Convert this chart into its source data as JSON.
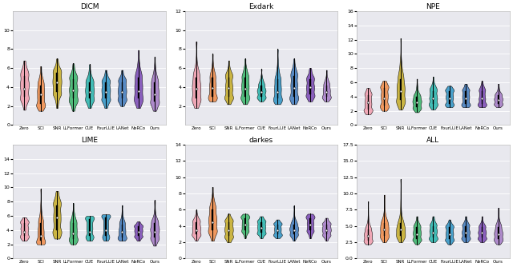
{
  "subplots": [
    {
      "title": "DICM",
      "ylim": [
        0,
        12
      ],
      "yticks": [
        0,
        2,
        4,
        6,
        8,
        10
      ],
      "methods": [
        "Zero",
        "SCI",
        "SNR",
        "LLFormer",
        "CUE",
        "FourLLIE",
        "LANet",
        "NeRCo",
        "Ours"
      ],
      "violins": [
        {
          "median": 3.8,
          "q1": 3.0,
          "q3": 5.2,
          "whislo": 1.6,
          "whishi": 6.8,
          "skew": 0.0
        },
        {
          "median": 3.2,
          "q1": 2.2,
          "q3": 4.2,
          "whislo": 1.5,
          "whishi": 6.2,
          "skew": -0.2
        },
        {
          "median": 4.5,
          "q1": 3.5,
          "q3": 5.5,
          "whislo": 1.8,
          "whishi": 7.0,
          "skew": 0.0
        },
        {
          "median": 3.7,
          "q1": 2.8,
          "q3": 4.8,
          "whislo": 1.5,
          "whishi": 6.5,
          "skew": 0.0
        },
        {
          "median": 3.5,
          "q1": 2.8,
          "q3": 4.5,
          "whislo": 1.8,
          "whishi": 6.4,
          "skew": 0.0
        },
        {
          "median": 3.5,
          "q1": 2.8,
          "q3": 4.5,
          "whislo": 1.8,
          "whishi": 5.8,
          "skew": 0.0
        },
        {
          "median": 3.5,
          "q1": 2.8,
          "q3": 4.5,
          "whislo": 2.0,
          "whishi": 5.8,
          "skew": 0.0
        },
        {
          "median": 3.6,
          "q1": 2.8,
          "q3": 5.0,
          "whislo": 1.8,
          "whishi": 7.9,
          "skew": 0.3
        },
        {
          "median": 3.2,
          "q1": 2.5,
          "q3": 4.5,
          "whislo": 1.5,
          "whishi": 7.2,
          "skew": 0.3
        }
      ]
    },
    {
      "title": "Exdark",
      "ylim": [
        0,
        12
      ],
      "yticks": [
        2,
        4,
        6,
        8,
        10,
        12
      ],
      "methods": [
        "Zero",
        "SCI",
        "SNR",
        "LLFormer",
        "CUE",
        "FourLLIE",
        "LANet",
        "NeRCo",
        "Ours"
      ],
      "violins": [
        {
          "median": 3.8,
          "q1": 2.8,
          "q3": 5.0,
          "whislo": 1.8,
          "whishi": 8.8,
          "skew": 0.3
        },
        {
          "median": 3.9,
          "q1": 3.0,
          "q3": 5.0,
          "whislo": 2.5,
          "whishi": 7.5,
          "skew": 0.2
        },
        {
          "median": 3.9,
          "q1": 3.0,
          "q3": 5.0,
          "whislo": 2.2,
          "whishi": 6.8,
          "skew": 0.1
        },
        {
          "median": 3.8,
          "q1": 3.0,
          "q3": 5.0,
          "whislo": 2.2,
          "whishi": 7.0,
          "skew": 0.1
        },
        {
          "median": 3.5,
          "q1": 3.0,
          "q3": 4.2,
          "whislo": 2.5,
          "whishi": 5.9,
          "skew": 0.0
        },
        {
          "median": 3.5,
          "q1": 2.8,
          "q3": 4.8,
          "whislo": 2.2,
          "whishi": 8.0,
          "skew": 0.3
        },
        {
          "median": 3.9,
          "q1": 3.0,
          "q3": 5.2,
          "whislo": 2.2,
          "whishi": 7.0,
          "skew": 0.1
        },
        {
          "median": 4.0,
          "q1": 3.2,
          "q3": 4.8,
          "whislo": 2.5,
          "whishi": 6.0,
          "skew": 0.0
        },
        {
          "median": 3.5,
          "q1": 3.0,
          "q3": 4.2,
          "whislo": 2.5,
          "whishi": 5.8,
          "skew": 0.0
        }
      ]
    },
    {
      "title": "NPE",
      "ylim": [
        0,
        16
      ],
      "yticks": [
        0,
        2,
        4,
        6,
        8,
        10,
        12,
        14,
        16
      ],
      "methods": [
        "Zero",
        "SCI",
        "SNR",
        "LLFormer",
        "CUE",
        "FourLLIE",
        "LANet",
        "NeRCo",
        "Ours"
      ],
      "violins": [
        {
          "median": 3.2,
          "q1": 2.2,
          "q3": 4.2,
          "whislo": 1.5,
          "whishi": 5.2,
          "skew": 0.0
        },
        {
          "median": 3.8,
          "q1": 2.8,
          "q3": 5.2,
          "whislo": 2.0,
          "whishi": 6.2,
          "skew": 0.0
        },
        {
          "median": 4.8,
          "q1": 3.5,
          "q3": 6.5,
          "whislo": 2.2,
          "whishi": 12.2,
          "skew": 0.5
        },
        {
          "median": 3.2,
          "q1": 2.5,
          "q3": 4.0,
          "whislo": 1.8,
          "whishi": 6.5,
          "skew": 0.2
        },
        {
          "median": 3.8,
          "q1": 3.0,
          "q3": 4.8,
          "whislo": 2.2,
          "whishi": 6.8,
          "skew": 0.2
        },
        {
          "median": 3.8,
          "q1": 3.0,
          "q3": 4.8,
          "whislo": 2.5,
          "whishi": 5.5,
          "skew": 0.0
        },
        {
          "median": 3.8,
          "q1": 3.0,
          "q3": 4.8,
          "whislo": 2.5,
          "whishi": 5.8,
          "skew": 0.0
        },
        {
          "median": 3.8,
          "q1": 3.0,
          "q3": 4.8,
          "whislo": 2.5,
          "whishi": 6.2,
          "skew": 0.1
        },
        {
          "median": 3.5,
          "q1": 3.0,
          "q3": 4.2,
          "whislo": 2.5,
          "whishi": 5.8,
          "skew": 0.0
        }
      ]
    },
    {
      "title": "LIME",
      "ylim": [
        0,
        16
      ],
      "yticks": [
        0,
        2,
        4,
        6,
        8,
        10,
        12,
        14
      ],
      "methods": [
        "Zero",
        "SCI",
        "SNR",
        "LLFormer",
        "CUE",
        "FourLLIE",
        "LANet",
        "NeRCo",
        "Ours"
      ],
      "violins": [
        {
          "median": 3.8,
          "q1": 3.2,
          "q3": 5.0,
          "whislo": 2.5,
          "whishi": 5.8,
          "skew": 0.0
        },
        {
          "median": 3.2,
          "q1": 2.5,
          "q3": 5.0,
          "whislo": 2.0,
          "whishi": 9.8,
          "skew": 0.5
        },
        {
          "median": 5.8,
          "q1": 4.0,
          "q3": 7.5,
          "whislo": 2.8,
          "whishi": 9.5,
          "skew": 0.1
        },
        {
          "median": 3.5,
          "q1": 2.8,
          "q3": 5.0,
          "whislo": 2.0,
          "whishi": 7.8,
          "skew": 0.3
        },
        {
          "median": 3.8,
          "q1": 3.2,
          "q3": 5.5,
          "whislo": 2.5,
          "whishi": 6.0,
          "skew": 0.0
        },
        {
          "median": 4.0,
          "q1": 3.2,
          "q3": 5.8,
          "whislo": 2.5,
          "whishi": 6.2,
          "skew": 0.0
        },
        {
          "median": 3.8,
          "q1": 3.0,
          "q3": 4.8,
          "whislo": 2.5,
          "whishi": 7.5,
          "skew": 0.2
        },
        {
          "median": 3.8,
          "q1": 3.2,
          "q3": 4.5,
          "whislo": 2.5,
          "whishi": 5.2,
          "skew": 0.0
        },
        {
          "median": 3.8,
          "q1": 3.0,
          "q3": 5.0,
          "whislo": 1.8,
          "whishi": 8.2,
          "skew": 0.3
        }
      ]
    },
    {
      "title": "darkes",
      "ylim": [
        0,
        14
      ],
      "yticks": [
        0,
        2,
        4,
        6,
        8,
        10,
        12,
        14
      ],
      "methods": [
        "Zero",
        "SCI",
        "SNR",
        "LLFormer",
        "CUE",
        "FourLLIE",
        "LANet",
        "NeRCo",
        "Ours"
      ],
      "violins": [
        {
          "median": 3.5,
          "q1": 3.0,
          "q3": 4.5,
          "whislo": 2.2,
          "whishi": 6.0,
          "skew": 0.0
        },
        {
          "median": 4.5,
          "q1": 3.5,
          "q3": 6.0,
          "whislo": 2.2,
          "whishi": 8.8,
          "skew": 0.2
        },
        {
          "median": 3.5,
          "q1": 2.8,
          "q3": 4.5,
          "whislo": 2.0,
          "whishi": 5.5,
          "skew": 0.0
        },
        {
          "median": 4.2,
          "q1": 3.5,
          "q3": 5.0,
          "whislo": 2.5,
          "whishi": 5.5,
          "skew": 0.0
        },
        {
          "median": 3.8,
          "q1": 3.2,
          "q3": 4.5,
          "whislo": 2.5,
          "whishi": 5.2,
          "skew": 0.0
        },
        {
          "median": 3.5,
          "q1": 3.0,
          "q3": 4.2,
          "whislo": 2.5,
          "whishi": 4.8,
          "skew": 0.0
        },
        {
          "median": 3.5,
          "q1": 3.0,
          "q3": 4.2,
          "whislo": 2.2,
          "whishi": 6.5,
          "skew": 0.2
        },
        {
          "median": 4.2,
          "q1": 3.5,
          "q3": 5.0,
          "whislo": 2.5,
          "whishi": 5.5,
          "skew": 0.0
        },
        {
          "median": 3.5,
          "q1": 3.0,
          "q3": 4.2,
          "whislo": 2.2,
          "whishi": 5.0,
          "skew": 0.0
        }
      ]
    },
    {
      "title": "ALL",
      "ylim": [
        0,
        17.5
      ],
      "yticks": [
        0,
        2.5,
        5.0,
        7.5,
        10.0,
        12.5,
        15.0,
        17.5
      ],
      "methods": [
        "Zero",
        "SCI",
        "SNR",
        "LLFormer",
        "CUE",
        "FourLLIE",
        "LANet",
        "NeRCo",
        "Ours"
      ],
      "violins": [
        {
          "median": 3.5,
          "q1": 2.8,
          "q3": 4.5,
          "whislo": 2.2,
          "whishi": 8.8,
          "skew": 0.3
        },
        {
          "median": 4.5,
          "q1": 3.5,
          "q3": 5.5,
          "whislo": 2.5,
          "whishi": 9.8,
          "skew": 0.3
        },
        {
          "median": 4.5,
          "q1": 3.5,
          "q3": 5.5,
          "whislo": 2.5,
          "whishi": 12.2,
          "skew": 0.5
        },
        {
          "median": 3.8,
          "q1": 3.0,
          "q3": 4.8,
          "whislo": 2.2,
          "whishi": 6.5,
          "skew": 0.1
        },
        {
          "median": 4.0,
          "q1": 3.2,
          "q3": 5.0,
          "whislo": 2.5,
          "whishi": 6.5,
          "skew": 0.1
        },
        {
          "median": 3.8,
          "q1": 3.0,
          "q3": 4.8,
          "whislo": 2.2,
          "whishi": 6.0,
          "skew": 0.0
        },
        {
          "median": 4.0,
          "q1": 3.2,
          "q3": 5.0,
          "whislo": 2.5,
          "whishi": 6.5,
          "skew": 0.1
        },
        {
          "median": 4.0,
          "q1": 3.2,
          "q3": 4.8,
          "whislo": 2.5,
          "whishi": 6.5,
          "skew": 0.0
        },
        {
          "median": 3.8,
          "q1": 3.0,
          "q3": 4.8,
          "whislo": 2.2,
          "whishi": 7.8,
          "skew": 0.2
        }
      ]
    }
  ],
  "colors": [
    "#f0a0b0",
    "#f09050",
    "#c8b030",
    "#40b870",
    "#30b8b0",
    "#3898c8",
    "#4880c0",
    "#8050b8",
    "#a880c8"
  ],
  "bg_color": "#e8e8ee",
  "grid_color": "#ffffff",
  "violin_width": 0.55,
  "figsize": [
    6.4,
    3.34
  ],
  "dpi": 100
}
